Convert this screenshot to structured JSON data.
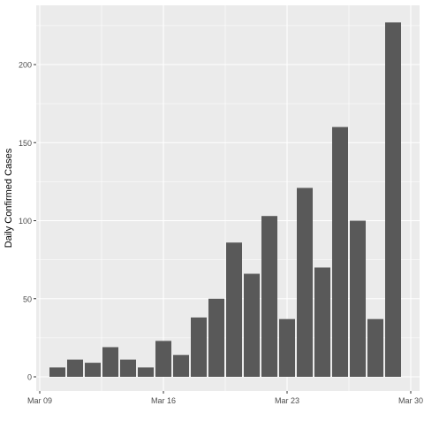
{
  "chart_data": {
    "type": "bar",
    "title": "",
    "xlabel": "",
    "ylabel": "Daily Confirmed Cases",
    "x": [
      "Mar 10",
      "Mar 11",
      "Mar 12",
      "Mar 13",
      "Mar 14",
      "Mar 15",
      "Mar 16",
      "Mar 17",
      "Mar 18",
      "Mar 19",
      "Mar 20",
      "Mar 21",
      "Mar 22",
      "Mar 23",
      "Mar 24",
      "Mar 25",
      "Mar 26",
      "Mar 27",
      "Mar 28",
      "Mar 29"
    ],
    "values": [
      6,
      11,
      9,
      19,
      11,
      6,
      23,
      14,
      38,
      50,
      86,
      66,
      103,
      37,
      121,
      70,
      160,
      100,
      37,
      227
    ],
    "ylim": [
      0,
      238
    ],
    "xlim": [
      "Mar 09",
      "Mar 30"
    ],
    "yticks": [
      0,
      50,
      100,
      150,
      200
    ],
    "ytick_labels": [
      "0",
      "50",
      "100",
      "150",
      "200"
    ],
    "xticks": [
      "Mar 09",
      "Mar 16",
      "Mar 23",
      "Mar 30"
    ],
    "xtick_labels": [
      "Mar 09",
      "Mar 16",
      "Mar 23",
      "Mar 30"
    ],
    "grid": true,
    "legend": "none",
    "bar_color": "#595959",
    "panel_color": "#ebebeb",
    "grid_color": "#ffffff"
  }
}
